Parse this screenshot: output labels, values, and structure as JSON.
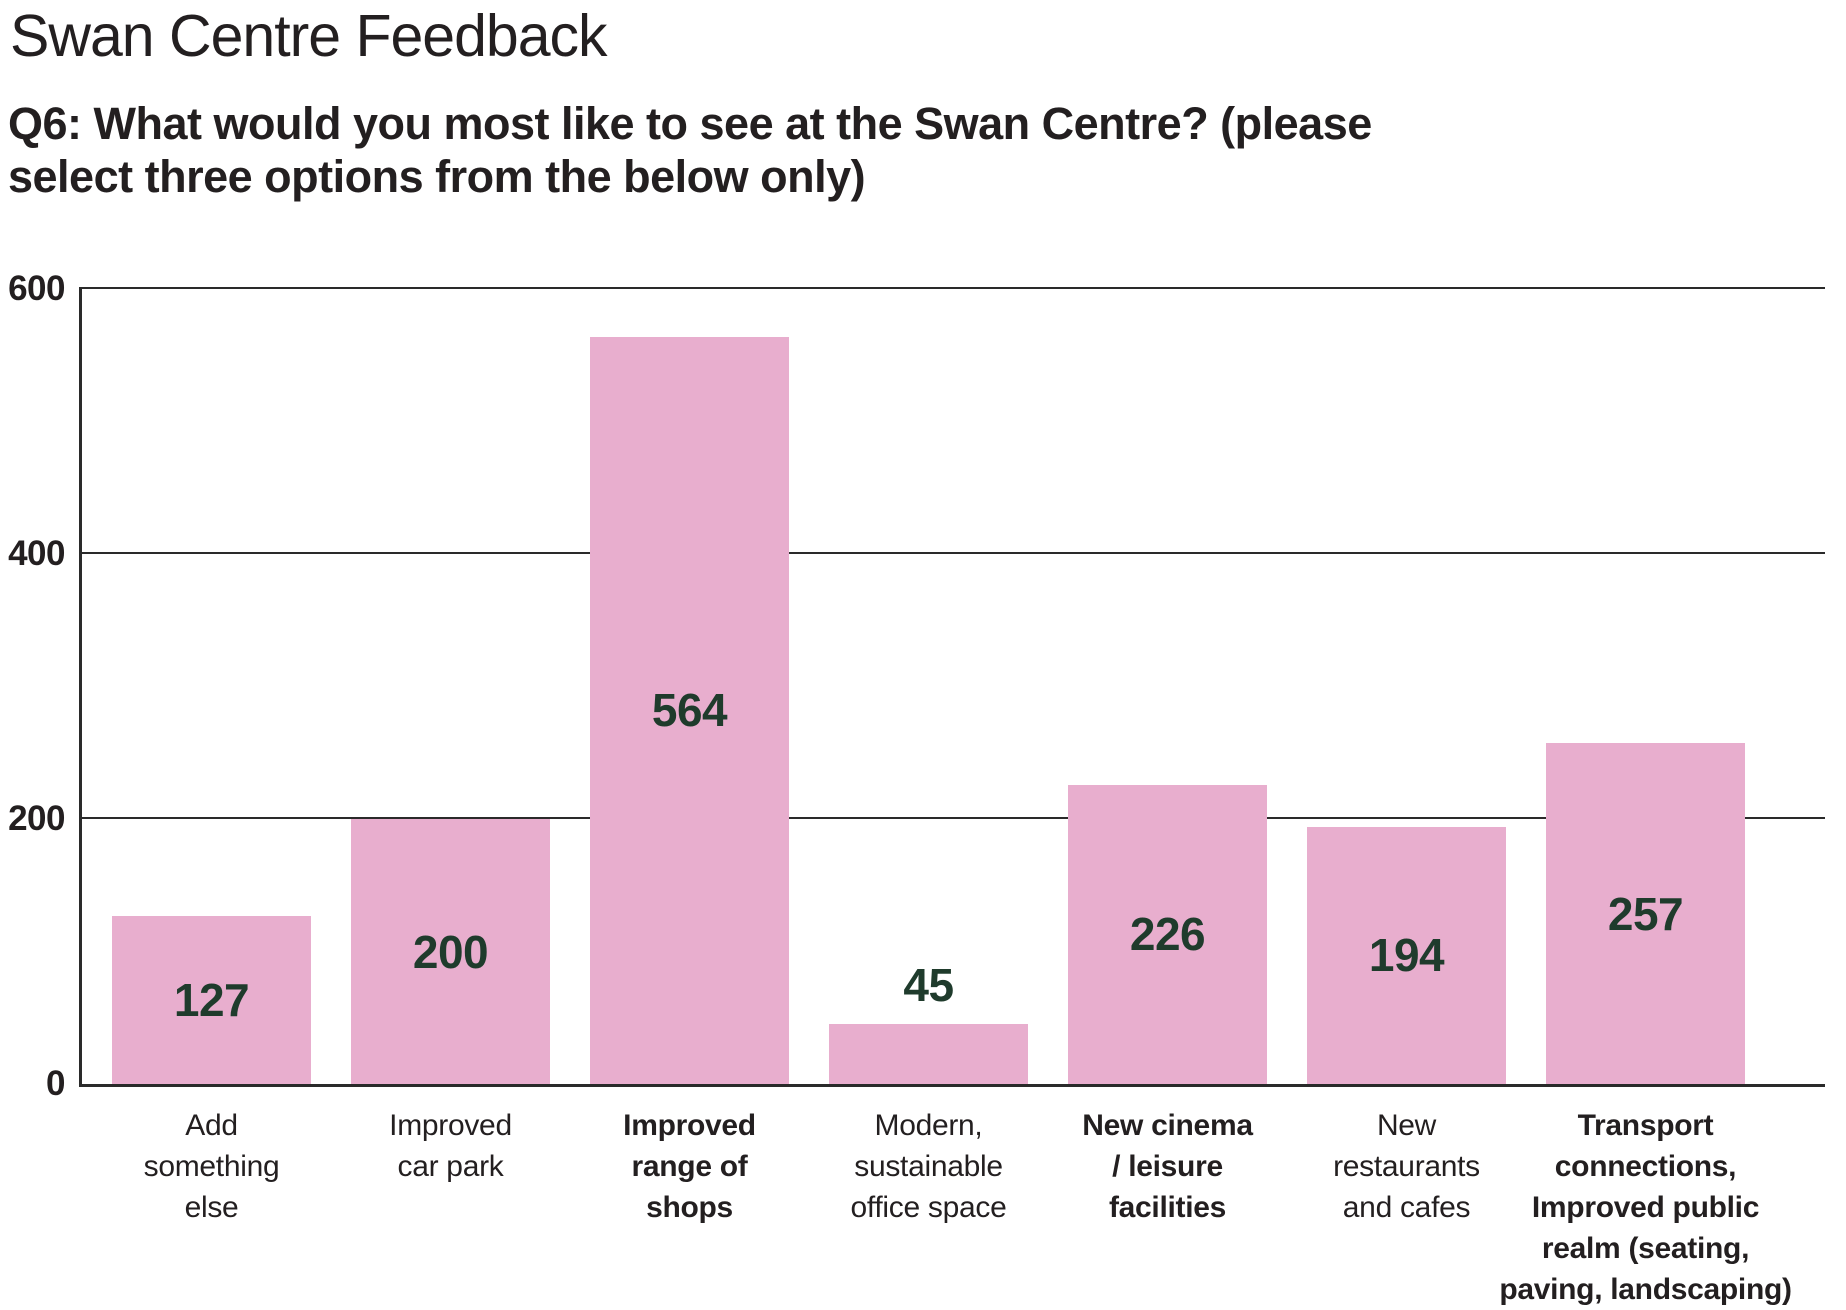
{
  "header": {
    "title": "Swan Centre Feedback",
    "question": "Q6: What would you most like to see at the Swan Centre? (please\nselect three options from the below only)"
  },
  "chart_data": {
    "type": "bar",
    "title": "Q6: What would you most like to see at the Swan Centre? (please select three options from the below only)",
    "categories": [
      "Add\nsomething\nelse",
      "Improved\ncar park",
      "Improved\nrange of\nshops",
      "Modern,\nsustainable\noffice space",
      "New cinema\n/ leisure\nfacilities",
      "New\nrestaurants\nand cafes",
      "Transport\nconnections,\nImproved public\nrealm (seating,\npaving, landscaping)"
    ],
    "bold_categories": [
      false,
      false,
      true,
      false,
      true,
      false,
      true
    ],
    "values": [
      127,
      200,
      564,
      45,
      226,
      194,
      257
    ],
    "value_label_position": [
      "inside",
      "inside",
      "inside",
      "above",
      "inside",
      "inside",
      "inside"
    ],
    "xlabel": "",
    "ylabel": "",
    "ylim": [
      0,
      600
    ],
    "yticks": [
      0,
      200,
      400,
      600
    ],
    "grid": "horizontal",
    "legend": "none",
    "colors": {
      "bar_fill": "#E8AECE",
      "value_label": "#1F3B2C",
      "axis_line": "#2A2A2A",
      "text": "#231F20"
    }
  }
}
